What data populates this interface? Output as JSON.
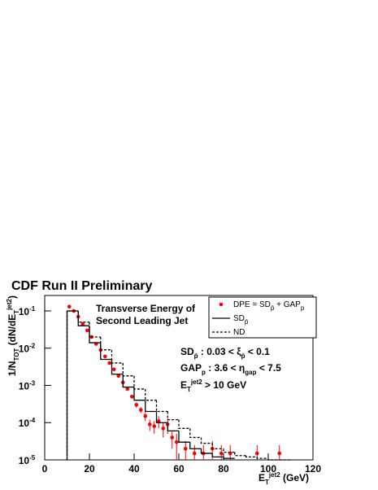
{
  "chart_data": {
    "type": "histogram",
    "title": "CDF Run II Preliminary",
    "xlabel": [
      {
        "text": "E"
      },
      {
        "sub": "T"
      },
      {
        "sup": "jet2"
      },
      {
        "text": " (GeV)"
      }
    ],
    "ylabel": [
      {
        "text": "1/N"
      },
      {
        "sub": "TOT"
      },
      {
        "text": " (dN/dE"
      },
      {
        "sub": "T"
      },
      {
        "sup": "jet2"
      },
      {
        "text": ")"
      }
    ],
    "xlim": [
      0,
      120
    ],
    "xticks": [
      0,
      20,
      40,
      60,
      80,
      100,
      120
    ],
    "ylim": [
      1e-05,
      0.26
    ],
    "log_y": true,
    "yticks": [
      {
        "value": 0.1,
        "label": "10",
        "exp": "-1"
      },
      {
        "value": 0.01,
        "label": "10",
        "exp": "-2"
      },
      {
        "value": 0.001,
        "label": "10",
        "exp": "-3"
      },
      {
        "value": 0.0001,
        "label": "10",
        "exp": "-4"
      },
      {
        "value": 1e-05,
        "label": "10",
        "exp": "-5"
      }
    ],
    "annotations": [
      [
        {
          "text": "Transverse Energy of"
        }
      ],
      [
        {
          "text": "Second Leading Jet"
        }
      ],
      [
        {
          "text": "SD"
        },
        {
          "sub": "p̄"
        },
        {
          "text": " : 0.03 < ξ"
        },
        {
          "sub": "p̄"
        },
        {
          "text": " < 0.1"
        }
      ],
      [
        {
          "text": "GAP"
        },
        {
          "sub": "p"
        },
        {
          "text": " : 3.6 < η"
        },
        {
          "sub": "gap"
        },
        {
          "text": " < 7.5"
        }
      ],
      [
        {
          "text": "E"
        },
        {
          "sub": "T"
        },
        {
          "sup": "jet2"
        },
        {
          "text": " > 10 GeV"
        }
      ]
    ],
    "legend": "upper right",
    "series": [
      {
        "name": [
          {
            "text": "DPE = SD"
          },
          {
            "sub": "p̄"
          },
          {
            "text": " + GAP"
          },
          {
            "sub": "p"
          }
        ],
        "kind": "points",
        "color": "#ff0000",
        "x": [
          11,
          13,
          15,
          17,
          19,
          21,
          23,
          25,
          27,
          29,
          31,
          33,
          35,
          37,
          39,
          41,
          43,
          45,
          47,
          49,
          51,
          53,
          55,
          57,
          59,
          63,
          67,
          71,
          75,
          79,
          83,
          95,
          105
        ],
        "values": [
          0.13,
          0.1,
          0.07,
          0.045,
          0.03,
          0.02,
          0.013,
          0.009,
          0.006,
          0.004,
          0.0027,
          0.0018,
          0.0012,
          0.0008,
          0.0005,
          0.0003,
          0.00022,
          0.00015,
          9e-05,
          8e-05,
          0.00011,
          7e-05,
          9e-05,
          4e-05,
          3e-05,
          2e-05,
          1.5e-05,
          1.5e-05,
          2e-05,
          1.5e-05,
          1.5e-05,
          1.5e-05,
          1.5e-05
        ],
        "err": [
          0.005,
          0.004,
          0.003,
          0.002,
          0.0015,
          0.001,
          0.0007,
          0.0005,
          0.0004,
          0.0003,
          0.0002,
          0.00015,
          0.0001,
          8e-05,
          6e-05,
          5e-05,
          4e-05,
          4e-05,
          3e-05,
          3e-05,
          4e-05,
          3e-05,
          4e-05,
          2e-05,
          2e-05,
          1.2e-05,
          1e-05,
          1e-05,
          1.2e-05,
          1e-05,
          1e-05,
          1e-05,
          1e-05
        ]
      },
      {
        "name": [
          {
            "text": "SD"
          },
          {
            "sub": "p̄"
          }
        ],
        "kind": "step",
        "color": "#000000",
        "bins": [
          10,
          15,
          20,
          25,
          30,
          35,
          40,
          45,
          50,
          55,
          60,
          65,
          70,
          75,
          80,
          85
        ],
        "values": [
          0.1,
          0.04,
          0.014,
          0.005,
          0.002,
          0.0009,
          0.0004,
          0.0002,
          0.0001,
          6e-05,
          3e-05,
          2e-05,
          1.5e-05,
          1.2e-05,
          1.1e-05
        ]
      },
      {
        "name": [
          {
            "text": "ND"
          }
        ],
        "kind": "step",
        "color": "#000000",
        "dashed": true,
        "bins": [
          10,
          15,
          20,
          25,
          30,
          35,
          40,
          45,
          50,
          55,
          60,
          65,
          70,
          75,
          80,
          85,
          90,
          95,
          100,
          105,
          110
        ],
        "values": [
          0.1,
          0.05,
          0.02,
          0.009,
          0.004,
          0.0018,
          0.0008,
          0.0004,
          0.0002,
          0.00012,
          7e-05,
          4e-05,
          2.8e-05,
          2e-05,
          1.6e-05,
          1.3e-05,
          1.2e-05,
          1.1e-05,
          1e-05,
          1e-05
        ]
      }
    ]
  }
}
